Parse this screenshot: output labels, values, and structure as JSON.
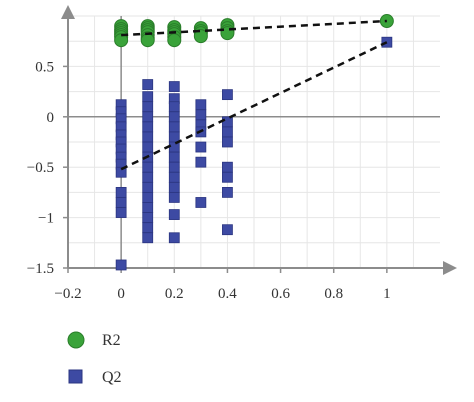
{
  "chart_data": {
    "type": "scatter",
    "title": "",
    "xlabel": "",
    "ylabel": "",
    "xlim": [
      -0.2,
      1.2
    ],
    "ylim": [
      -1.5,
      1.0
    ],
    "xticks": [
      {
        "value": -0.2,
        "label": "−0.2"
      },
      {
        "value": 0,
        "label": "0"
      },
      {
        "value": 0.2,
        "label": "0.2"
      },
      {
        "value": 0.4,
        "label": "0.4"
      },
      {
        "value": 0.6,
        "label": "0.6"
      },
      {
        "value": 0.8,
        "label": "0.8"
      },
      {
        "value": 1,
        "label": "1"
      }
    ],
    "yticks": [
      {
        "value": 0.5,
        "label": "0.5"
      },
      {
        "value": 0,
        "label": "0"
      },
      {
        "value": -0.5,
        "label": "−0.5"
      },
      {
        "value": -1,
        "label": "−1"
      },
      {
        "value": -1.5,
        "label": "−1.5"
      }
    ],
    "grid": true,
    "legend_position": "bottom-left",
    "series": [
      {
        "name": "R2",
        "marker": "circle",
        "color": "#3aa33a",
        "edge_color": "#2a7d2a",
        "points": [
          [
            0,
            0.9
          ],
          [
            0,
            0.87
          ],
          [
            0,
            0.85
          ],
          [
            0,
            0.83
          ],
          [
            0,
            0.81
          ],
          [
            0,
            0.79
          ],
          [
            0,
            0.76
          ],
          [
            0.1,
            0.9
          ],
          [
            0.1,
            0.88
          ],
          [
            0.1,
            0.86
          ],
          [
            0.1,
            0.84
          ],
          [
            0.1,
            0.81
          ],
          [
            0.1,
            0.78
          ],
          [
            0.1,
            0.76
          ],
          [
            0.2,
            0.89
          ],
          [
            0.2,
            0.86
          ],
          [
            0.2,
            0.84
          ],
          [
            0.2,
            0.82
          ],
          [
            0.2,
            0.79
          ],
          [
            0.2,
            0.76
          ],
          [
            0.3,
            0.88
          ],
          [
            0.3,
            0.85
          ],
          [
            0.3,
            0.83
          ],
          [
            0.3,
            0.8
          ],
          [
            0.4,
            0.91
          ],
          [
            0.4,
            0.88
          ],
          [
            0.4,
            0.85
          ],
          [
            0.4,
            0.83
          ],
          [
            1,
            0.95
          ]
        ],
        "regression": {
          "x": [
            0,
            1
          ],
          "y": [
            0.81,
            0.95
          ]
        }
      },
      {
        "name": "Q2",
        "marker": "square",
        "color": "#3d4aa3",
        "edge_color": "#2b3580",
        "points": [
          [
            0,
            0.12
          ],
          [
            0,
            0.05
          ],
          [
            0,
            -0.02
          ],
          [
            0,
            -0.1
          ],
          [
            0,
            -0.18
          ],
          [
            0,
            -0.25
          ],
          [
            0,
            -0.32
          ],
          [
            0,
            -0.4
          ],
          [
            0,
            -0.47
          ],
          [
            0,
            -0.55
          ],
          [
            0,
            -0.75
          ],
          [
            0,
            -0.85
          ],
          [
            0,
            -0.95
          ],
          [
            0,
            -1.47
          ],
          [
            0.1,
            0.32
          ],
          [
            0.1,
            0.2
          ],
          [
            0.1,
            0.1
          ],
          [
            0.1,
            0.0
          ],
          [
            0.1,
            -0.1
          ],
          [
            0.1,
            -0.2
          ],
          [
            0.1,
            -0.3
          ],
          [
            0.1,
            -0.4
          ],
          [
            0.1,
            -0.5
          ],
          [
            0.1,
            -0.6
          ],
          [
            0.1,
            -0.7
          ],
          [
            0.1,
            -0.8
          ],
          [
            0.1,
            -0.9
          ],
          [
            0.1,
            -1.0
          ],
          [
            0.1,
            -1.1
          ],
          [
            0.1,
            -1.2
          ],
          [
            0.2,
            0.3
          ],
          [
            0.2,
            0.18
          ],
          [
            0.2,
            0.1
          ],
          [
            0.2,
            0.0
          ],
          [
            0.2,
            -0.1
          ],
          [
            0.2,
            -0.2
          ],
          [
            0.2,
            -0.3
          ],
          [
            0.2,
            -0.4
          ],
          [
            0.2,
            -0.5
          ],
          [
            0.2,
            -0.6
          ],
          [
            0.2,
            -0.7
          ],
          [
            0.2,
            -0.8
          ],
          [
            0.2,
            -0.97
          ],
          [
            0.2,
            -1.2
          ],
          [
            0.3,
            0.12
          ],
          [
            0.3,
            0.02
          ],
          [
            0.3,
            -0.08
          ],
          [
            0.3,
            -0.15
          ],
          [
            0.3,
            -0.3
          ],
          [
            0.3,
            -0.45
          ],
          [
            0.3,
            -0.85
          ],
          [
            0.4,
            0.22
          ],
          [
            0.4,
            -0.05
          ],
          [
            0.4,
            -0.15
          ],
          [
            0.4,
            -0.25
          ],
          [
            0.4,
            -0.5
          ],
          [
            0.4,
            -0.6
          ],
          [
            0.4,
            -0.75
          ],
          [
            0.4,
            -1.12
          ],
          [
            1,
            0.74
          ]
        ],
        "regression": {
          "x": [
            0,
            1
          ],
          "y": [
            -0.52,
            0.74
          ]
        }
      }
    ]
  },
  "colors": {
    "grid": "#e6e6e6",
    "axis": "#8c8c8c",
    "regression": "#111111"
  }
}
